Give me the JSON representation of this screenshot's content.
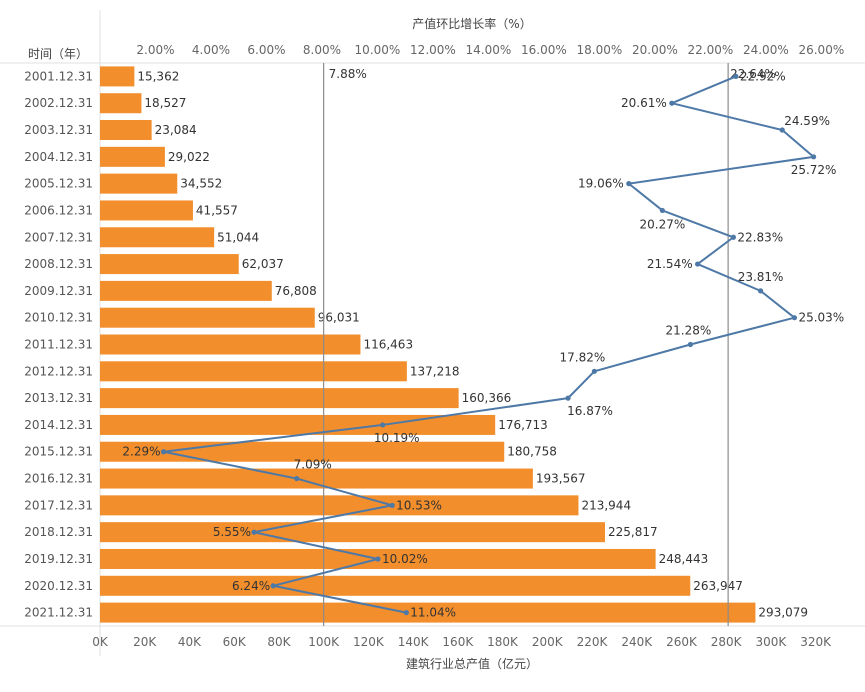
{
  "chart_data": {
    "type": "bar",
    "orientation": "horizontal",
    "title": "",
    "categories_title": "时间（年）",
    "categories": [
      "2001.12.31",
      "2002.12.31",
      "2003.12.31",
      "2004.12.31",
      "2005.12.31",
      "2006.12.31",
      "2007.12.31",
      "2008.12.31",
      "2009.12.31",
      "2010.12.31",
      "2011.12.31",
      "2012.12.31",
      "2013.12.31",
      "2014.12.31",
      "2015.12.31",
      "2016.12.31",
      "2017.12.31",
      "2018.12.31",
      "2019.12.31",
      "2020.12.31",
      "2021.12.31"
    ],
    "bar_axis": {
      "label": "建筑行业总产值（亿元）",
      "ticks": [
        "0K",
        "20K",
        "40K",
        "60K",
        "80K",
        "100K",
        "120K",
        "140K",
        "160K",
        "180K",
        "200K",
        "220K",
        "240K",
        "260K",
        "280K",
        "300K",
        "320K"
      ],
      "xlim": [
        0,
        330000
      ],
      "reference_line": 100000
    },
    "line_axis": {
      "label": "产值环比增长率（%）",
      "ticks": [
        "2.00%",
        "4.00%",
        "6.00%",
        "8.00%",
        "10.00%",
        "12.00%",
        "14.00%",
        "16.00%",
        "18.00%",
        "20.00%",
        "22.00%",
        "24.00%",
        "26.00%"
      ],
      "xlim": [
        0.0,
        26.6
      ],
      "reference_line": 7.88,
      "reference_label": "7.88%",
      "reference_line_2": 22.64,
      "reference_label_2": "22.64%"
    },
    "series": [
      {
        "type": "bar",
        "color": "#f28e2b",
        "values": [
          15362,
          18527,
          23084,
          29022,
          34552,
          41557,
          51044,
          62037,
          76808,
          96031,
          116463,
          137218,
          160366,
          176713,
          180758,
          193567,
          213944,
          225817,
          248443,
          263947,
          293079
        ],
        "labels": [
          "15,362",
          "18,527",
          "23,084",
          "29,022",
          "34,552",
          "41,557",
          "51,044",
          "62,037",
          "76,808",
          "96,031",
          "116,463",
          "137,218",
          "160,366",
          "176,713",
          "180,758",
          "193,567",
          "213,944",
          "225,817",
          "248,443",
          "263,947",
          "293,079"
        ]
      },
      {
        "type": "line",
        "color": "#4e79a7",
        "values": [
          22.92,
          20.61,
          24.59,
          25.72,
          19.06,
          20.27,
          22.83,
          21.54,
          23.81,
          25.03,
          21.28,
          17.82,
          16.87,
          10.19,
          2.29,
          7.09,
          10.53,
          5.55,
          10.02,
          6.24,
          11.04
        ],
        "labels": [
          "22.92%",
          "20.61%",
          "24.59%",
          "25.72%",
          "19.06%",
          "20.27%",
          "22.83%",
          "21.54%",
          "23.81%",
          "25.03%",
          "21.28%",
          "17.82%",
          "16.87%",
          "10.19%",
          "2.29%",
          "7.09%",
          "10.53%",
          "5.55%",
          "10.02%",
          "6.24%",
          "11.04%"
        ]
      }
    ],
    "grid": false,
    "legend": "none"
  }
}
